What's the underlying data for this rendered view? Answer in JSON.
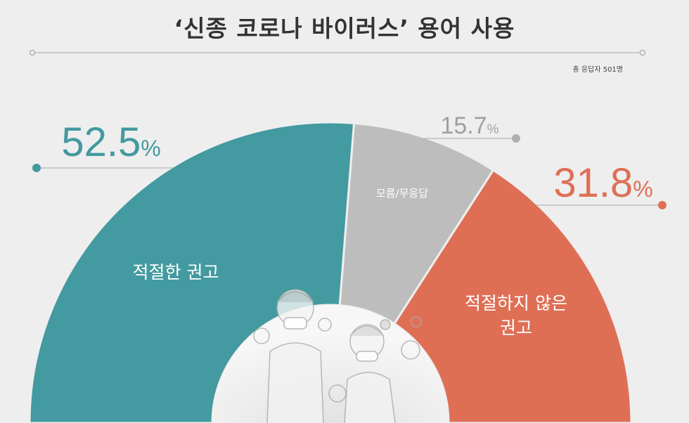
{
  "title": "‘신종 코로나 바이러스’ 용어 사용",
  "note": "총 응답자 501명",
  "colors": {
    "appropriate": "#439aa0",
    "unknown": "#bdbdbd",
    "inappropriate": "#de6f55",
    "background": "#eeeeee"
  },
  "chart_data": {
    "type": "pie",
    "subtype": "semicircle-donut",
    "unit": "%",
    "slices": [
      {
        "label": "적절한 권고",
        "value": 52.5,
        "value_text": "52.5",
        "color": "#439aa0"
      },
      {
        "label": "모름/무응답",
        "value": 15.7,
        "value_text": "15.7",
        "color": "#bdbdbd"
      },
      {
        "label": "적절하지 않은 권고",
        "value": 31.8,
        "value_text": "31.8",
        "color": "#de6f55"
      }
    ]
  }
}
